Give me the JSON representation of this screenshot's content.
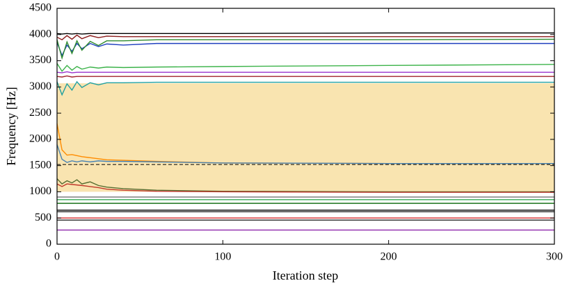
{
  "chart_data": {
    "type": "line",
    "x_label": "Iteration step",
    "y_label": "Frequency [Hz]",
    "xlim": [
      0,
      300
    ],
    "xticks": [
      0,
      100,
      200,
      300
    ],
    "ylim": [
      0,
      4500
    ],
    "yticks": [
      0,
      500,
      1000,
      1500,
      2000,
      2500,
      3000,
      3500,
      4000,
      4500
    ],
    "shaded_range": [
      1000,
      3070
    ],
    "shaded_color": "#f9e4b0",
    "reference_line": 1520,
    "x": [
      0,
      3,
      6,
      9,
      12,
      15,
      20,
      25,
      30,
      40,
      60,
      100,
      200,
      300
    ],
    "series": [
      {
        "color": "#000000",
        "values": [
          4020,
          4010,
          4020,
          4010,
          4020,
          4010,
          4020,
          4020,
          4020,
          4020,
          4020,
          4020,
          4030,
          4030
        ]
      },
      {
        "color": "#8b1a1a",
        "values": [
          3950,
          3900,
          3980,
          3910,
          3990,
          3920,
          3980,
          3940,
          3970,
          3960,
          3960,
          3960,
          3960,
          3960
        ]
      },
      {
        "color": "#1f3fbf",
        "values": [
          3850,
          3600,
          3800,
          3680,
          3830,
          3730,
          3830,
          3770,
          3820,
          3800,
          3830,
          3830,
          3830,
          3830
        ]
      },
      {
        "color": "#2e8b2e",
        "values": [
          3900,
          3550,
          3860,
          3640,
          3880,
          3700,
          3870,
          3790,
          3880,
          3880,
          3900,
          3900,
          3900,
          3910
        ]
      },
      {
        "color": "#3cb34a",
        "values": [
          3450,
          3300,
          3410,
          3320,
          3390,
          3340,
          3380,
          3360,
          3380,
          3370,
          3380,
          3390,
          3410,
          3430
        ]
      },
      {
        "color": "#9932cc",
        "values": [
          3280,
          3270,
          3290,
          3270,
          3280,
          3280,
          3280,
          3280,
          3280,
          3280,
          3280,
          3280,
          3280,
          3280
        ]
      },
      {
        "color": "#a0202a",
        "values": [
          3200,
          3190,
          3210,
          3190,
          3200,
          3200,
          3200,
          3200,
          3200,
          3200,
          3200,
          3200,
          3200,
          3200
        ]
      },
      {
        "color": "#20a0a0",
        "values": [
          3100,
          2850,
          3060,
          2940,
          3100,
          2990,
          3080,
          3040,
          3080,
          3080,
          3090,
          3090,
          3090,
          3090
        ]
      },
      {
        "color": "#ff8c00",
        "values": [
          2300,
          1800,
          1700,
          1710,
          1690,
          1670,
          1650,
          1630,
          1610,
          1600,
          1580,
          1550,
          1540,
          1540
        ]
      },
      {
        "color": "#4682b4",
        "values": [
          1900,
          1620,
          1560,
          1590,
          1570,
          1590,
          1570,
          1590,
          1580,
          1580,
          1570,
          1550,
          1540,
          1540
        ]
      },
      {
        "color": "#556b2f",
        "values": [
          1250,
          1150,
          1210,
          1170,
          1230,
          1150,
          1190,
          1120,
          1090,
          1060,
          1030,
          1010,
          1000,
          1000
        ]
      },
      {
        "color": "#c0392b",
        "values": [
          1150,
          1100,
          1150,
          1140,
          1130,
          1120,
          1100,
          1080,
          1050,
          1030,
          1010,
          1000,
          990,
          990
        ]
      },
      {
        "color": "#808080",
        "values": [
          900,
          900,
          900,
          900,
          900,
          900,
          900,
          900,
          900,
          900,
          900,
          900,
          900,
          900
        ]
      },
      {
        "color": "#32a852",
        "values": [
          850,
          850,
          850,
          850,
          850,
          850,
          850,
          850,
          850,
          850,
          850,
          850,
          850,
          850
        ]
      },
      {
        "color": "#006400",
        "values": [
          780,
          780,
          780,
          780,
          780,
          780,
          780,
          780,
          780,
          780,
          780,
          780,
          780,
          780
        ]
      },
      {
        "color": "#000000",
        "values": [
          650,
          650,
          650,
          650,
          650,
          650,
          650,
          650,
          650,
          650,
          650,
          650,
          650,
          650
        ]
      },
      {
        "color": "#222222",
        "values": [
          620,
          620,
          620,
          620,
          620,
          620,
          620,
          620,
          620,
          620,
          620,
          620,
          620,
          620
        ]
      },
      {
        "color": "#d62728",
        "values": [
          500,
          500,
          500,
          500,
          500,
          500,
          500,
          500,
          500,
          500,
          500,
          500,
          500,
          500
        ]
      },
      {
        "color": "#333333",
        "values": [
          460,
          460,
          460,
          460,
          460,
          460,
          460,
          460,
          460,
          460,
          460,
          460,
          460,
          460
        ]
      },
      {
        "color": "#8e24aa",
        "values": [
          270,
          270,
          270,
          270,
          270,
          270,
          270,
          270,
          270,
          270,
          270,
          270,
          270,
          270
        ]
      }
    ]
  }
}
